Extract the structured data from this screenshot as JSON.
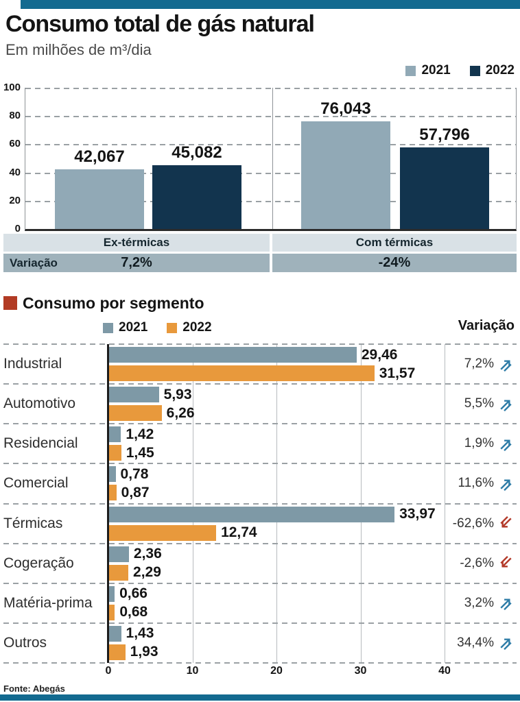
{
  "page": {
    "title": "Consumo total de gás natural",
    "subtitle": "Em milhões de m³/dia",
    "source": "Fonte: Abegás"
  },
  "colors": {
    "band_teal": "#136a90",
    "bar_2021_top": "#91a9b6",
    "bar_2022_navy": "#12344e",
    "bar_2021_bottom": "#7e99a6",
    "bar_2022_orange": "#e8993c",
    "accent_red_square": "#b23b24",
    "arrow_up_blue": "#2e7ca7",
    "arrow_down_red": "#b33a2a",
    "band_light": "#d9e1e6",
    "band_mid": "#9fb2bb"
  },
  "chart_data": [
    {
      "type": "bar",
      "title": "Consumo total de gás natural",
      "subtitle": "Em milhões de m³/dia",
      "categories": [
        "Ex-térmicas",
        "Com térmicas"
      ],
      "series": [
        {
          "name": "2021",
          "values": [
            42.067,
            76.043
          ],
          "labels": [
            "42,067",
            "76,043"
          ]
        },
        {
          "name": "2022",
          "values": [
            45.082,
            57.796
          ],
          "labels": [
            "45,082",
            "57,796"
          ]
        }
      ],
      "variation_row": {
        "label": "Variação",
        "values": [
          "7,2%",
          "-24%"
        ]
      },
      "ylim": [
        0,
        100
      ],
      "yticks": [
        0,
        20,
        40,
        60,
        80,
        100
      ],
      "grid": "dashed-horizontal",
      "legend_position": "top-right"
    },
    {
      "type": "bar",
      "orientation": "horizontal",
      "title": "Consumo por segmento",
      "categories": [
        "Industrial",
        "Automotivo",
        "Residencial",
        "Comercial",
        "Térmicas",
        "Cogeração",
        "Matéria-prima",
        "Outros"
      ],
      "series": [
        {
          "name": "2021",
          "values": [
            29.46,
            5.93,
            1.42,
            0.78,
            33.97,
            2.36,
            0.66,
            1.43
          ],
          "labels": [
            "29,46",
            "5,93",
            "1,42",
            "0,78",
            "33,97",
            "2,36",
            "0,66",
            "1,43"
          ]
        },
        {
          "name": "2022",
          "values": [
            31.57,
            6.26,
            1.45,
            0.87,
            12.74,
            2.29,
            0.68,
            1.93
          ],
          "labels": [
            "31,57",
            "6,26",
            "1,45",
            "0,87",
            "12,74",
            "2,29",
            "0,68",
            "1,93"
          ]
        }
      ],
      "variation": {
        "header": "Variação",
        "values": [
          "7,2%",
          "5,5%",
          "1,9%",
          "11,6%",
          "-62,6%",
          "-2,6%",
          "3,2%",
          "34,4%"
        ],
        "directions": [
          "up",
          "up",
          "up",
          "up",
          "down",
          "down",
          "up",
          "up"
        ]
      },
      "xlim": [
        0,
        40
      ],
      "xticks": [
        0,
        10,
        20,
        30,
        40
      ],
      "grid": "solid-vertical",
      "legend_position": "top-left"
    }
  ]
}
